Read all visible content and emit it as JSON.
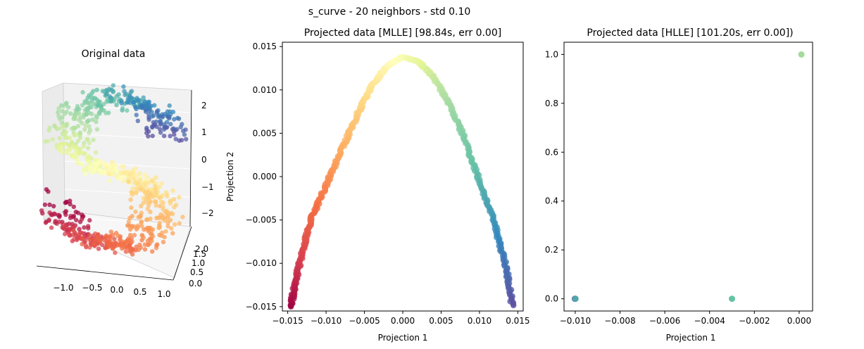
{
  "suptitle": "s_curve - 20 neighbors - std 0.10",
  "chart_data": [
    {
      "type": "scatter",
      "title": "Original data",
      "projection": "3d",
      "x_ticks": [
        "−1.0",
        "−0.5",
        "0.0",
        "0.5",
        "1.0"
      ],
      "y_ticks": [
        "0.0",
        "0.5",
        "1.0",
        "1.5",
        "2.0"
      ],
      "z_ticks": [
        "2",
        "1",
        "0",
        "−1",
        "−2"
      ],
      "xlim": [
        -1.2,
        1.2
      ],
      "ylim": [
        0,
        2
      ],
      "zlim": [
        -2.4,
        2.4
      ],
      "colormap": "Spectral",
      "grid": true,
      "description_of_shape": "S-shaped 3D point cloud, colored along the curve from red (top) through yellow to blue (bottom)"
    },
    {
      "type": "scatter",
      "title": "Projected data [MLLE] [98.84s, err 0.00]",
      "xlabel": "Projection 1",
      "ylabel": "Projection 2",
      "xlim": [
        -0.0157,
        0.0157
      ],
      "ylim": [
        -0.0155,
        0.0155
      ],
      "x_ticks": [
        "−0.015",
        "−0.010",
        "−0.005",
        "0.000",
        "0.005",
        "0.010",
        "0.015"
      ],
      "y_ticks": [
        "0.015",
        "0.010",
        "0.005",
        "0.000",
        "−0.005",
        "−0.010",
        "−0.015"
      ],
      "colormap": "Spectral",
      "curve_points": [
        [
          -0.0146,
          -0.015
        ],
        [
          -0.014,
          -0.012
        ],
        [
          -0.013,
          -0.0085
        ],
        [
          -0.012,
          -0.005
        ],
        [
          -0.01,
          -0.001
        ],
        [
          -0.008,
          0.003
        ],
        [
          -0.006,
          0.007
        ],
        [
          -0.004,
          0.0105
        ],
        [
          -0.002,
          0.0128
        ],
        [
          0.0,
          0.0138
        ],
        [
          0.002,
          0.0133
        ],
        [
          0.004,
          0.0115
        ],
        [
          0.006,
          0.0085
        ],
        [
          0.008,
          0.0045
        ],
        [
          0.01,
          -0.0005
        ],
        [
          0.012,
          -0.0055
        ],
        [
          0.0135,
          -0.0105
        ],
        [
          0.0143,
          -0.015
        ]
      ]
    },
    {
      "type": "scatter",
      "title": "Projected data [HLLE] [101.20s, err 0.00])",
      "xlabel": "Projection 1",
      "ylabel": "",
      "xlim": [
        -0.0105,
        0.0006
      ],
      "ylim": [
        -0.05,
        1.05
      ],
      "x_ticks": [
        "−0.010",
        "−0.008",
        "−0.006",
        "−0.004",
        "−0.002",
        "0.000"
      ],
      "y_ticks": [
        "1.0",
        "0.8",
        "0.6",
        "0.4",
        "0.2",
        "0.0"
      ],
      "points": [
        {
          "x": -0.01,
          "y": 0.0,
          "color": "#3a88b9"
        },
        {
          "x": -0.003,
          "y": 0.0,
          "color": "#66c2a5"
        },
        {
          "x": 0.0001,
          "y": 1.0,
          "color": "#a5da9d"
        }
      ]
    }
  ]
}
